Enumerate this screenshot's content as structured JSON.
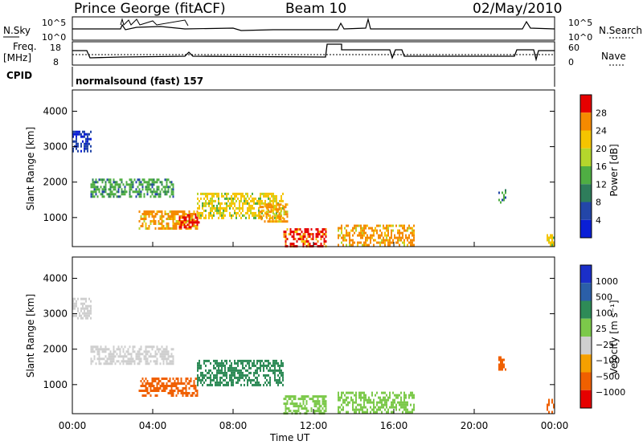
{
  "header": {
    "station": "Prince George (fitACF)",
    "beam": "Beam 10",
    "date": "02/May/2010"
  },
  "panel_labels": {
    "nsky": "N.Sky",
    "freq": "Freq.",
    "freq_unit": "[MHz]",
    "cpid": "CPID",
    "nsearch": "N.Search",
    "nave": "Nave",
    "nsky_ticks": [
      "10^5",
      "10^0"
    ],
    "freq_ticks": [
      "18",
      "8"
    ],
    "nsearch_ticks": [
      "10^5",
      "10^0"
    ],
    "nave_ticks": [
      "60",
      "0"
    ],
    "cpid_text": "normalsound (fast) 157"
  },
  "colors": {
    "power": [
      "#0a1fd6",
      "#2346a8",
      "#2e7d5b",
      "#4fae43",
      "#b4d62c",
      "#f5c400",
      "#f58a00",
      "#e60000"
    ],
    "velocity": [
      "#e60000",
      "#f06000",
      "#f5a000",
      "#cfcfcf",
      "#7cc94a",
      "#2e8b57",
      "#2b5fa8",
      "#1b2fc9"
    ]
  },
  "chart_data": [
    {
      "type": "heatmap",
      "name": "Power",
      "ylabel": "Slant Range [km]",
      "xlabel": "Time UT",
      "xlim": [
        "00:00",
        "24:00"
      ],
      "ylim": [
        180,
        4600
      ],
      "yticks": [
        1000,
        2000,
        3000,
        4000
      ],
      "xticks": [
        "00:00",
        "04:00",
        "08:00",
        "12:00",
        "16:00",
        "20:00",
        "00:00"
      ],
      "colorbar": {
        "label": "Power [dB]",
        "ticks": [
          "28",
          "24",
          "20",
          "16",
          "12",
          "8",
          "4"
        ],
        "range": [
          0,
          30
        ]
      },
      "regions": [
        {
          "t0": 0.0,
          "t1": 0.9,
          "r0": 2900,
          "r1": 3450,
          "level": 6
        },
        {
          "t0": 0.9,
          "t1": 5.0,
          "r0": 1600,
          "r1": 2100,
          "level": 14
        },
        {
          "t0": 3.3,
          "t1": 6.2,
          "r0": 700,
          "r1": 1200,
          "level": 24
        },
        {
          "t0": 5.3,
          "t1": 6.3,
          "r0": 700,
          "r1": 1100,
          "level": 28
        },
        {
          "t0": 6.2,
          "t1": 10.5,
          "r0": 1000,
          "r1": 1700,
          "level": 20
        },
        {
          "t0": 9.3,
          "t1": 10.7,
          "r0": 900,
          "r1": 1400,
          "level": 26
        },
        {
          "t0": 10.5,
          "t1": 12.6,
          "r0": 200,
          "r1": 700,
          "level": 28
        },
        {
          "t0": 13.2,
          "t1": 17.0,
          "r0": 200,
          "r1": 800,
          "level": 24
        },
        {
          "t0": 21.2,
          "t1": 21.6,
          "r0": 1400,
          "r1": 1800,
          "level": 14
        },
        {
          "t0": 23.6,
          "t1": 24.0,
          "r0": 200,
          "r1": 600,
          "level": 22
        }
      ]
    },
    {
      "type": "heatmap",
      "name": "Velocity",
      "ylabel": "Slant Range [km]",
      "xlabel": "Time UT",
      "xlim": [
        "00:00",
        "24:00"
      ],
      "ylim": [
        180,
        4600
      ],
      "yticks": [
        1000,
        2000,
        3000,
        4000
      ],
      "xticks": [
        "00:00",
        "04:00",
        "08:00",
        "12:00",
        "16:00",
        "20:00",
        "00:00"
      ],
      "colorbar": {
        "label": "Velocity [m s⁻¹]",
        "ticks": [
          "1000",
          "500",
          "100",
          "25",
          "−25",
          "−100",
          "−500",
          "−1000"
        ],
        "range": [
          -1000,
          1000
        ]
      },
      "regions": [
        {
          "t0": 0.0,
          "t1": 0.9,
          "r0": 2900,
          "r1": 3450,
          "level": 0
        },
        {
          "t0": 0.9,
          "t1": 5.0,
          "r0": 1600,
          "r1": 2100,
          "level": 0
        },
        {
          "t0": 3.3,
          "t1": 6.2,
          "r0": 700,
          "r1": 1200,
          "level": -150
        },
        {
          "t0": 6.2,
          "t1": 10.5,
          "r0": 1000,
          "r1": 1700,
          "level": 150
        },
        {
          "t0": 10.5,
          "t1": 12.6,
          "r0": 200,
          "r1": 700,
          "level": 80
        },
        {
          "t0": 13.2,
          "t1": 17.0,
          "r0": 200,
          "r1": 800,
          "level": 60
        },
        {
          "t0": 21.2,
          "t1": 21.6,
          "r0": 1400,
          "r1": 1800,
          "level": -400
        },
        {
          "t0": 23.6,
          "t1": 24.0,
          "r0": 200,
          "r1": 600,
          "level": -150
        }
      ]
    }
  ]
}
